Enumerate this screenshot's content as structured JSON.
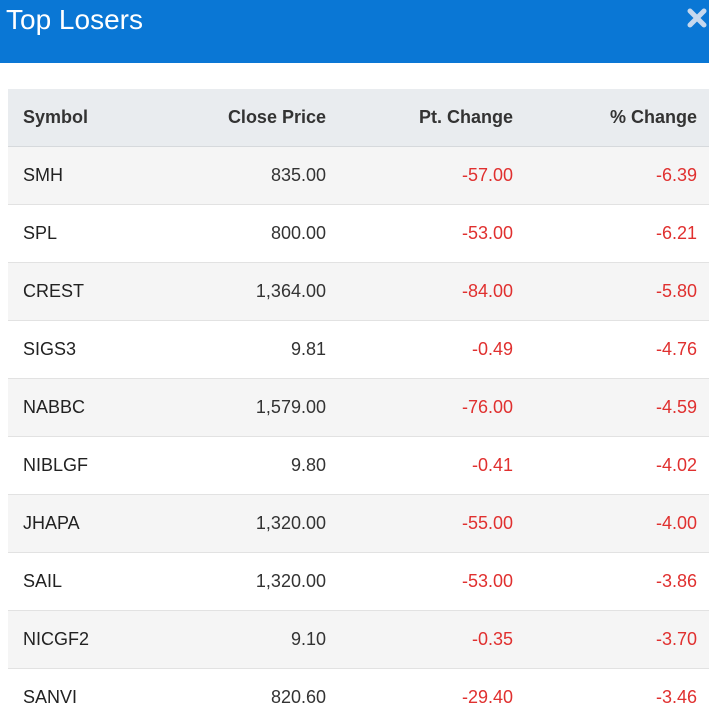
{
  "header": {
    "title": "Top Losers",
    "close_icon": "close-icon"
  },
  "colors": {
    "header_bg": "#0a77d5",
    "negative": "#e0302f",
    "table_header_bg": "#e9ecef",
    "row_alt_bg": "#f5f5f5"
  },
  "table": {
    "columns": [
      "Symbol",
      "Close Price",
      "Pt. Change",
      "% Change"
    ],
    "rows": [
      {
        "symbol": "SMH",
        "close": "835.00",
        "pt": "-57.00",
        "pct": "-6.39"
      },
      {
        "symbol": "SPL",
        "close": "800.00",
        "pt": "-53.00",
        "pct": "-6.21"
      },
      {
        "symbol": "CREST",
        "close": "1,364.00",
        "pt": "-84.00",
        "pct": "-5.80"
      },
      {
        "symbol": "SIGS3",
        "close": "9.81",
        "pt": "-0.49",
        "pct": "-4.76"
      },
      {
        "symbol": "NABBC",
        "close": "1,579.00",
        "pt": "-76.00",
        "pct": "-4.59"
      },
      {
        "symbol": "NIBLGF",
        "close": "9.80",
        "pt": "-0.41",
        "pct": "-4.02"
      },
      {
        "symbol": "JHAPA",
        "close": "1,320.00",
        "pt": "-55.00",
        "pct": "-4.00"
      },
      {
        "symbol": "SAIL",
        "close": "1,320.00",
        "pt": "-53.00",
        "pct": "-3.86"
      },
      {
        "symbol": "NICGF2",
        "close": "9.10",
        "pt": "-0.35",
        "pct": "-3.70"
      },
      {
        "symbol": "SANVI",
        "close": "820.60",
        "pt": "-29.40",
        "pct": "-3.46"
      }
    ]
  }
}
